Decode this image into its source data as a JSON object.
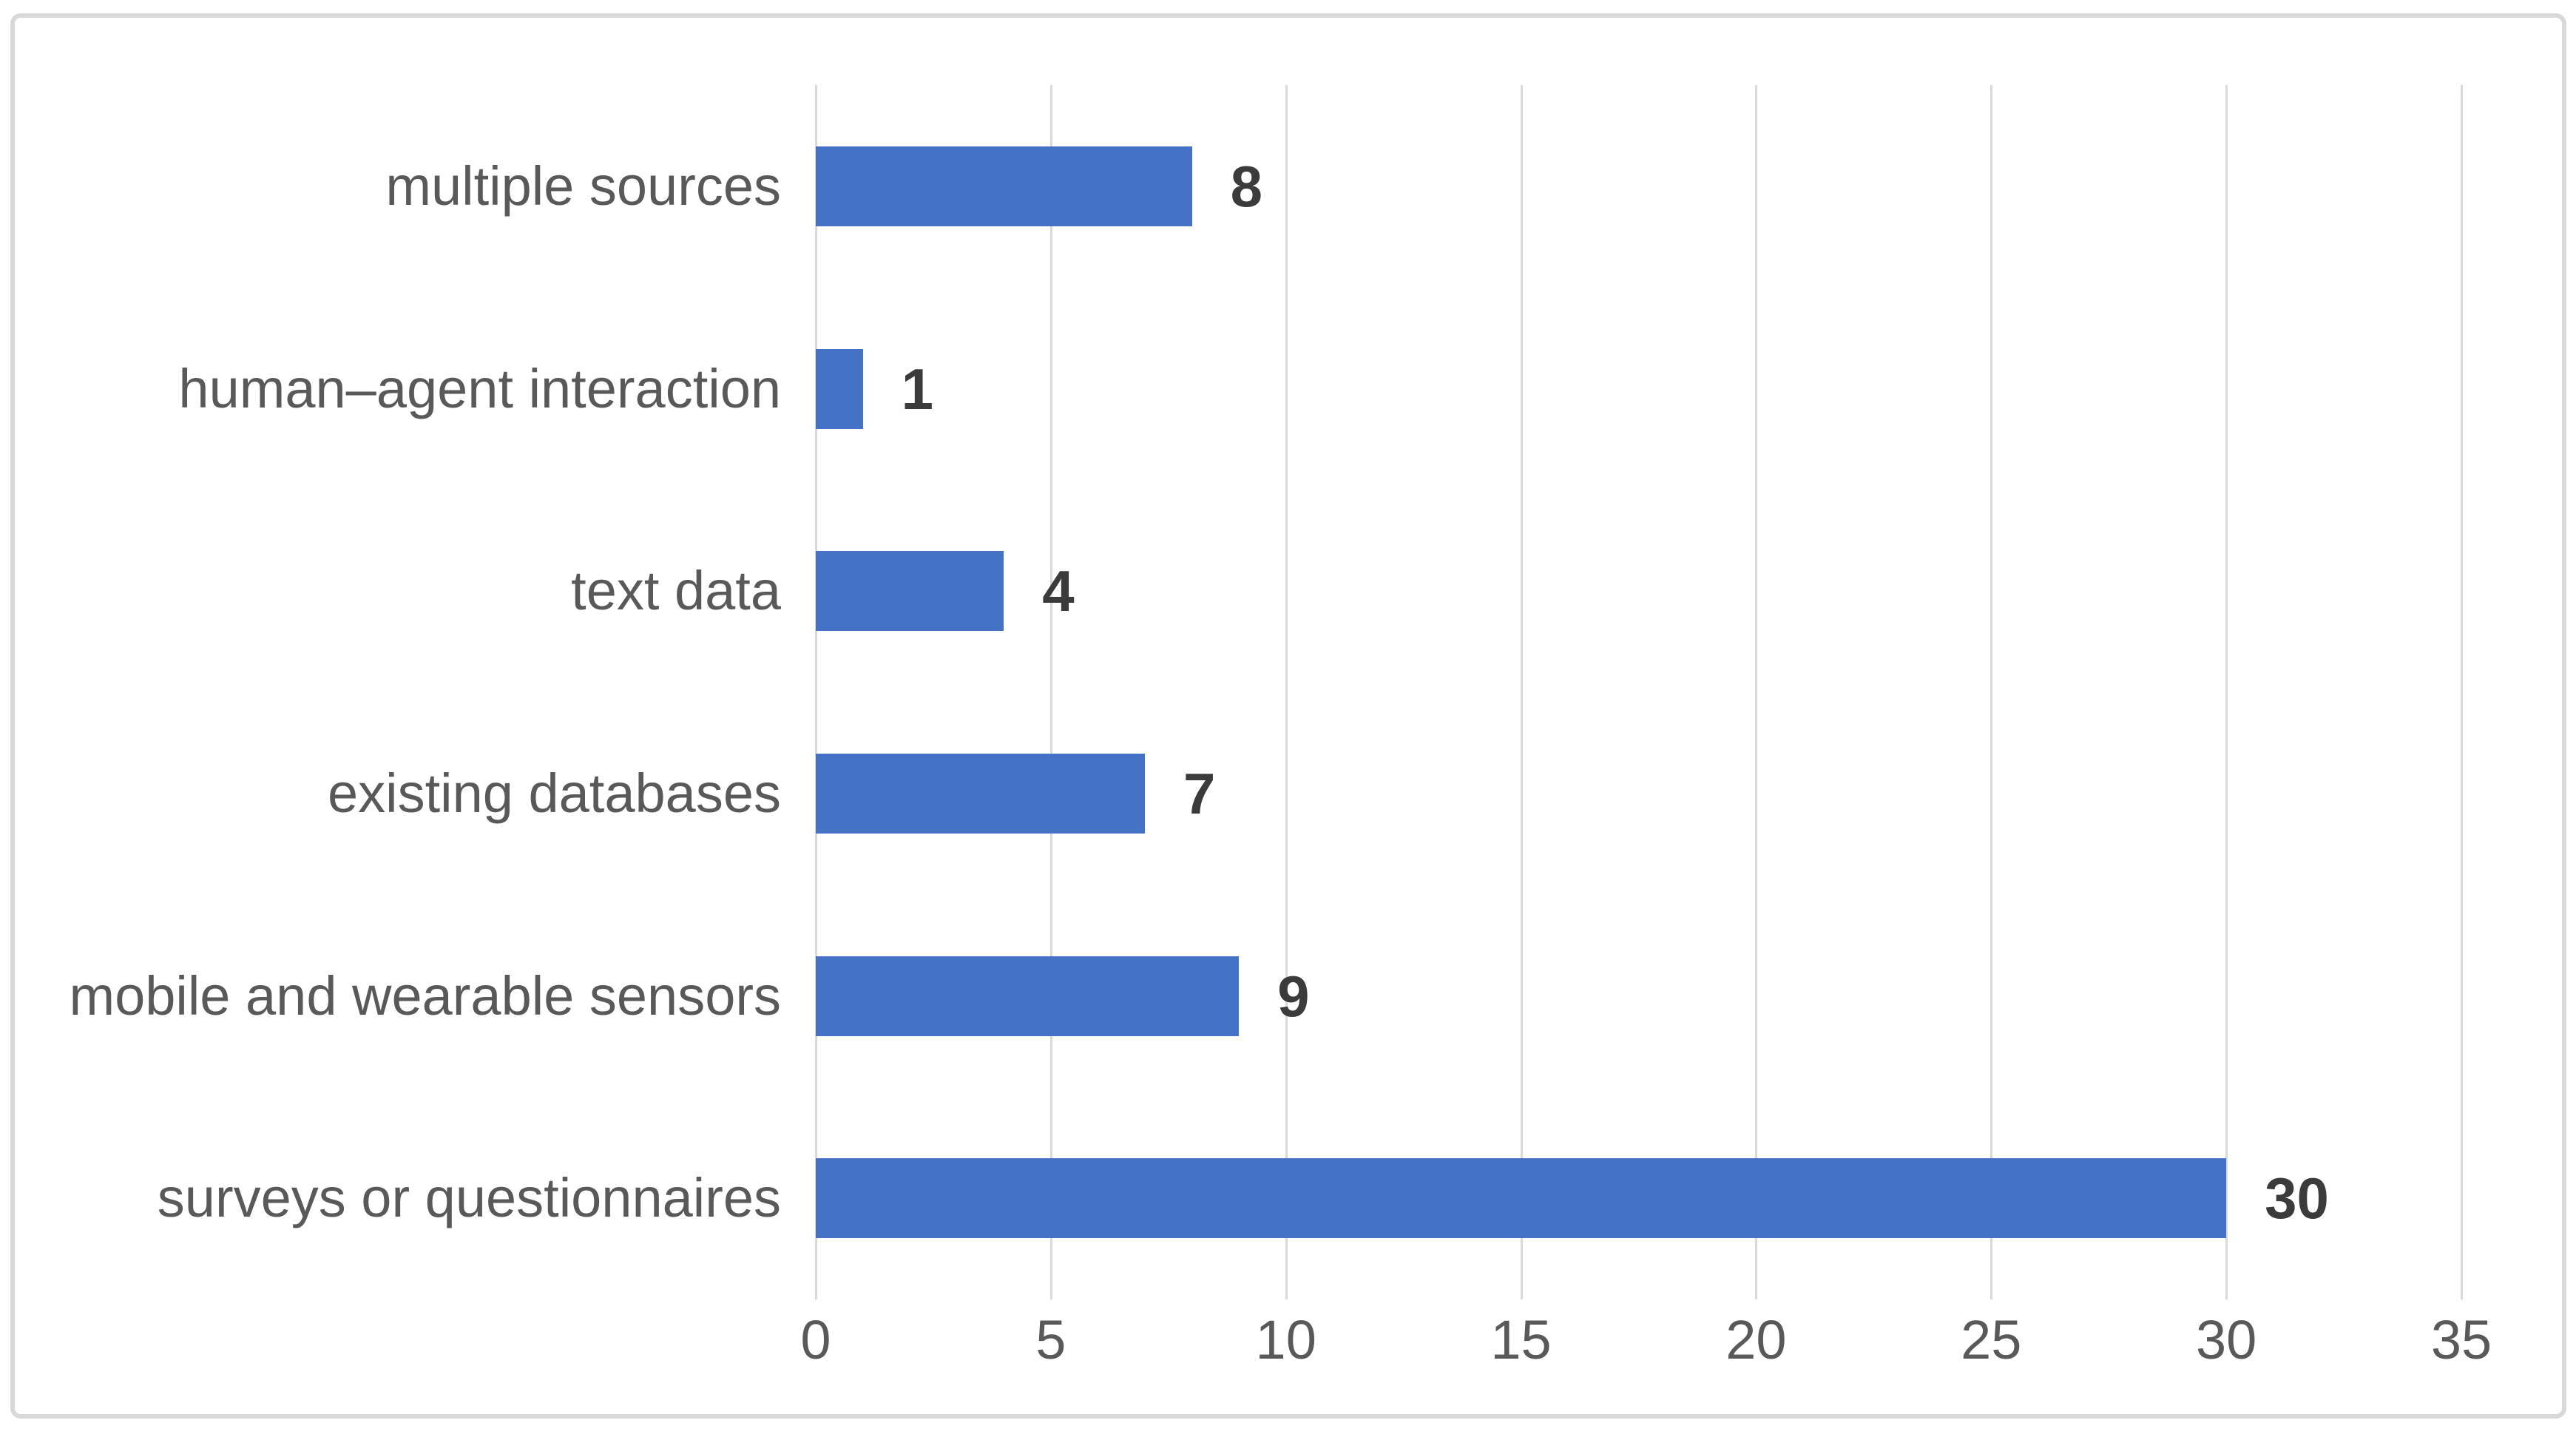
{
  "chart_data": {
    "type": "bar",
    "orientation": "horizontal",
    "title": "",
    "xlabel": "",
    "ylabel": "",
    "categories": [
      "multiple sources",
      "human–agent interaction",
      "text data",
      "existing databases",
      "mobile and wearable sensors",
      "surveys or questionnaires"
    ],
    "values": [
      8,
      1,
      4,
      7,
      9,
      30
    ],
    "data_labels": [
      "8",
      "1",
      "4",
      "7",
      "9",
      "30"
    ],
    "xlim": [
      0,
      35
    ],
    "x_ticks": [
      0,
      5,
      10,
      15,
      20,
      25,
      30,
      35
    ],
    "grid": "vertical-gridlines-on",
    "legend": "none",
    "colors": {
      "bar": "#4472C4",
      "gridline": "#d9d9d9",
      "frame_border": "#d9d9d9",
      "axis_text": "#595959",
      "data_label_text": "#3b3b3b",
      "background": "#ffffff"
    }
  }
}
